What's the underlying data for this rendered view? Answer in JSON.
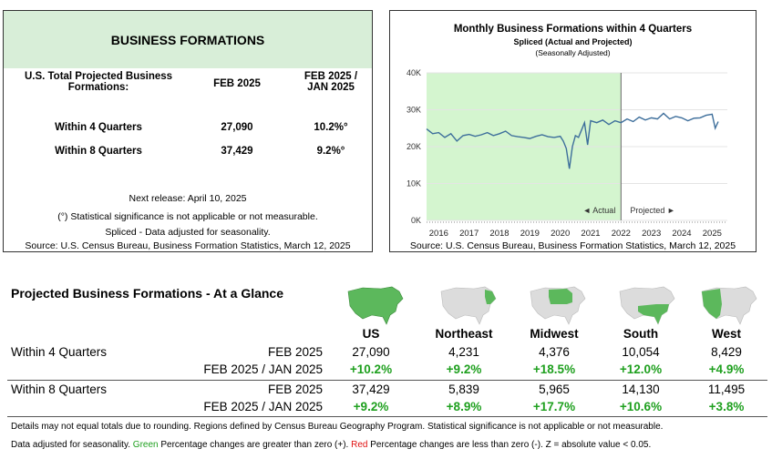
{
  "left": {
    "title": "BUSINESS FORMATIONS",
    "col_label": "U.S. Total Projected Business Formations:",
    "col_feb": "FEB 2025",
    "col_change": "FEB 2025 / JAN 2025",
    "rows": [
      {
        "label": "Within 4 Quarters",
        "value": "27,090",
        "change": "10.2%°"
      },
      {
        "label": "Within 8 Quarters",
        "value": "37,429",
        "change": "9.2%°"
      }
    ],
    "next_release": "Next release: April 10, 2025",
    "note1": "(°) Statistical significance is not applicable or not measurable.",
    "note2": "Spliced - Data adjusted for seasonality.",
    "source": "Source: U.S. Census Bureau, Business Formation Statistics, March 12, 2025"
  },
  "right": {
    "chart_data": {
      "type": "line",
      "title": "Monthly Business Formations within 4 Quarters",
      "subtitle": "Spliced (Actual and Projected)",
      "subtitle2": "(Seasonally Adjusted)",
      "y_ticks": [
        "40K",
        "30K",
        "20K",
        "10K",
        "0K"
      ],
      "ylim": [
        0,
        40000
      ],
      "x_ticks": [
        "2016",
        "2017",
        "2018",
        "2019",
        "2020",
        "2021",
        "2022",
        "2023",
        "2024",
        "2025"
      ],
      "actual_label": "◄ Actual",
      "projected_label": "Projected ►",
      "split_year": 2022,
      "series": [
        {
          "name": "Business Formations within 4 Quarters",
          "x": [
            2015.6,
            2015.8,
            2016.0,
            2016.2,
            2016.4,
            2016.6,
            2016.8,
            2017.0,
            2017.2,
            2017.4,
            2017.6,
            2017.8,
            2018.0,
            2018.2,
            2018.4,
            2018.6,
            2018.8,
            2019.0,
            2019.2,
            2019.4,
            2019.6,
            2019.8,
            2020.0,
            2020.1,
            2020.2,
            2020.3,
            2020.4,
            2020.5,
            2020.6,
            2020.7,
            2020.8,
            2020.9,
            2021.0,
            2021.2,
            2021.4,
            2021.6,
            2021.8,
            2022.0,
            2022.2,
            2022.4,
            2022.6,
            2022.8,
            2023.0,
            2023.2,
            2023.4,
            2023.6,
            2023.8,
            2024.0,
            2024.2,
            2024.4,
            2024.6,
            2024.8,
            2025.0,
            2025.1,
            2025.2
          ],
          "y": [
            24800,
            23500,
            23800,
            22500,
            23500,
            21500,
            23000,
            23300,
            22800,
            23200,
            23800,
            23000,
            23500,
            24200,
            23000,
            22700,
            22500,
            22200,
            22800,
            23200,
            22700,
            22500,
            22800,
            21500,
            19500,
            14000,
            20000,
            23000,
            22500,
            24500,
            26500,
            20500,
            27000,
            26500,
            27200,
            26000,
            27000,
            26500,
            27500,
            26800,
            28000,
            27200,
            27800,
            27500,
            29000,
            27500,
            28200,
            27800,
            27000,
            27700,
            27800,
            28500,
            28800,
            25000,
            26800
          ]
        }
      ],
      "source": "Source: U.S. Census Bureau, Business Formation Statistics, March 12, 2025"
    }
  },
  "glance": {
    "title": "Projected Business Formations - At a Glance",
    "regions": [
      "US",
      "Northeast",
      "Midwest",
      "South",
      "West"
    ],
    "row4_label": "Within 4 Quarters",
    "row8_label": "Within 8 Quarters",
    "feb_label": "FEB 2025",
    "change_label": "FEB 2025 / JAN 2025",
    "row4_values": [
      "27,090",
      "4,231",
      "4,376",
      "10,054",
      "8,429"
    ],
    "row4_changes": [
      "+10.2%",
      "+9.2%",
      "+18.5%",
      "+12.0%",
      "+4.9%"
    ],
    "row8_values": [
      "37,429",
      "5,839",
      "5,965",
      "14,130",
      "11,495"
    ],
    "row8_changes": [
      "+9.2%",
      "+8.9%",
      "+17.7%",
      "+10.6%",
      "+3.8%"
    ],
    "note_line1": "Details may not equal totals due to rounding. Regions defined by Census Bureau Geography Program. Statistical significance is not applicable or not measurable.",
    "note_a": "Data adjusted for seasonality.",
    "note_green": "Green",
    "note_b": "Percentage changes are greater than zero (+).",
    "note_red": "Red",
    "note_c": "Percentage changes are less than zero (-). Z = absolute value < 0.05.",
    "colors": {
      "green": "#1fa01f",
      "red": "#e01010",
      "map_active": "#5cb85c",
      "map_inactive": "#dcdcdc"
    }
  }
}
